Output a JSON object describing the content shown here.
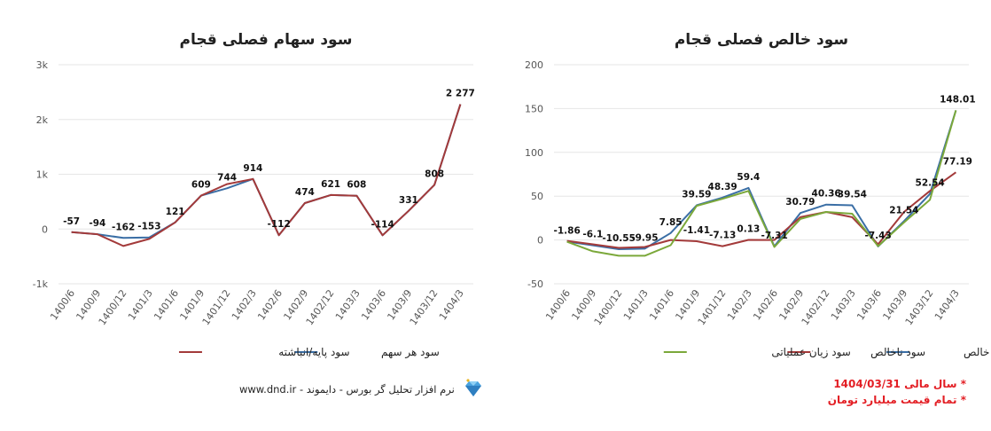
{
  "charts_colors": {
    "blue": "#3a6ea5",
    "red": "#a33a3a",
    "green": "#7ba83a"
  },
  "icons": {
    "brand": "diamond-icon"
  },
  "chart_data": [
    {
      "type": "line",
      "title": "سود سهام فصلی قجام",
      "categories": [
        "1400/6",
        "1400/9",
        "1400/12",
        "1401/3",
        "1401/6",
        "1401/9",
        "1401/12",
        "1402/3",
        "1402/6",
        "1402/9",
        "1402/12",
        "1403/3",
        "1403/6",
        "1403/9",
        "1403/12",
        "1404/3"
      ],
      "ylim": [
        -1000,
        3000
      ],
      "yticks": [
        -1000,
        0,
        1000,
        2000,
        3000
      ],
      "ytick_labels": [
        "-1k",
        "0",
        "1k",
        "2k",
        "3k"
      ],
      "grid": true,
      "legend_position": "bottom",
      "series": [
        {
          "name": "سود هر سهم",
          "color": "#3a6ea5",
          "values": [
            -57,
            -94,
            -162,
            -153,
            121,
            609,
            744,
            914,
            -112,
            474,
            621,
            608,
            -114,
            331,
            808,
            2277
          ]
        },
        {
          "name": "سود پایه/انباشته",
          "color": "#a33a3a",
          "values": [
            -57,
            -94,
            -310,
            -180,
            121,
            609,
            820,
            914,
            -112,
            474,
            621,
            608,
            -114,
            331,
            808,
            2277
          ]
        }
      ],
      "data_labels": [
        "-57",
        "-94",
        "-162",
        "-153",
        "121",
        "609",
        "744",
        "914",
        "-112",
        "474",
        "621",
        "608",
        "-114",
        "331",
        "808",
        "2 277"
      ]
    },
    {
      "type": "line",
      "title": "سود خالص فصلی قجام",
      "categories": [
        "1400/6",
        "1400/9",
        "1400/12",
        "1401/3",
        "1401/6",
        "1401/9",
        "1401/12",
        "1402/3",
        "1402/6",
        "1402/9",
        "1402/12",
        "1403/3",
        "1403/6",
        "1403/9",
        "1403/12",
        "1404/3"
      ],
      "ylim": [
        -50,
        200
      ],
      "yticks": [
        -50,
        0,
        50,
        100,
        150,
        200
      ],
      "ytick_labels": [
        "-50",
        "0",
        "50",
        "100",
        "150",
        "200"
      ],
      "grid": true,
      "legend_position": "bottom",
      "series": [
        {
          "name": "سود خالص",
          "color": "#3a6ea5",
          "values": [
            -1.86,
            -6.1,
            -10.55,
            -9.95,
            7.85,
            39.59,
            48.39,
            59.4,
            -7.31,
            30.79,
            40.36,
            39.54,
            -7.43,
            21.54,
            52.54,
            148.01
          ]
        },
        {
          "name": "سود ناخالص",
          "color": "#a33a3a",
          "values": [
            -1,
            -5,
            -9,
            -8,
            0,
            -1.41,
            -7.13,
            0.13,
            0,
            26,
            32,
            26,
            -5,
            32,
            56,
            77.19
          ]
        },
        {
          "name": "سود زیان عملیاتی",
          "color": "#7ba83a",
          "values": [
            -2,
            -13,
            -18,
            -18,
            -6,
            39,
            47,
            56,
            -8,
            24,
            32,
            30,
            -7,
            20,
            46,
            148
          ]
        }
      ],
      "data_labels": [
        {
          "text": "-1.86",
          "x_index": 0,
          "value": -1.86
        },
        {
          "text": "-6.1",
          "x_index": 1,
          "value": -6.1
        },
        {
          "text": "-10.55",
          "x_index": 2,
          "value": -10.55
        },
        {
          "text": "-9.95",
          "x_index": 3,
          "value": -9.95
        },
        {
          "text": "7.85",
          "x_index": 4,
          "value": 7.85
        },
        {
          "text": "39.59",
          "x_index": 5,
          "value": 39.59
        },
        {
          "text": "-1.41",
          "x_index": 5,
          "value": -1.41
        },
        {
          "text": "48.39",
          "x_index": 6,
          "value": 48.39
        },
        {
          "text": "-7.13",
          "x_index": 6,
          "value": -7.13
        },
        {
          "text": "59.4",
          "x_index": 7,
          "value": 59.4
        },
        {
          "text": "0.13",
          "x_index": 7,
          "value": 0.13
        },
        {
          "text": "-7.31",
          "x_index": 8,
          "value": -7.31
        },
        {
          "text": "30.79",
          "x_index": 9,
          "value": 30.79
        },
        {
          "text": "40.36",
          "x_index": 10,
          "value": 40.36
        },
        {
          "text": "39.54",
          "x_index": 11,
          "value": 39.54
        },
        {
          "text": "-7.43",
          "x_index": 12,
          "value": -7.43
        },
        {
          "text": "21.54",
          "x_index": 13,
          "value": 21.54
        },
        {
          "text": "52.54",
          "x_index": 14,
          "value": 52.54
        },
        {
          "text": "148.01",
          "x_index": 15,
          "value": 148.01
        },
        {
          "text": "77.19",
          "x_index": 15,
          "value": 77.19
        }
      ]
    }
  ],
  "footer": {
    "brand_text": "نرم افزار تحلیل گر بورس - دایموند - www.dnd.ir",
    "note_year": "* سال مالی 1404/03/31",
    "note_unit": "* تمام قیمت میلیارد تومان"
  }
}
